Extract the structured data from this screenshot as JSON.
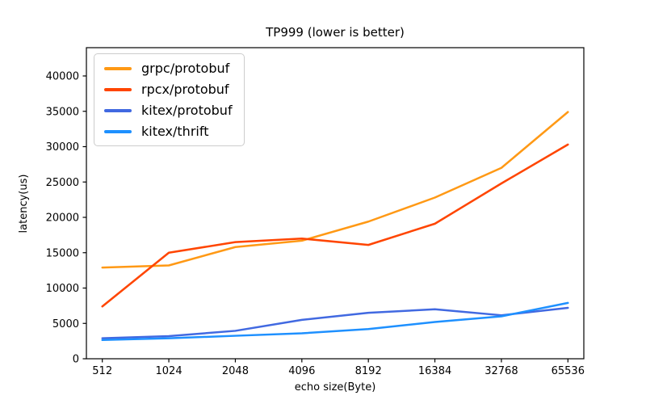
{
  "title": "TP999 (lower is better)",
  "chart_data": {
    "type": "line",
    "title": "TP999 (lower is better)",
    "xlabel": "echo size(Byte)",
    "ylabel": "latency(us)",
    "categories": [
      "512",
      "1024",
      "2048",
      "4096",
      "8192",
      "16384",
      "32768",
      "65536"
    ],
    "series": [
      {
        "name": "grpc/protobuf",
        "color": "#FF9915",
        "values": [
          12900,
          13200,
          15800,
          16700,
          19400,
          22800,
          27000,
          34900
        ]
      },
      {
        "name": "rpcx/protobuf",
        "color": "#FF4500",
        "values": [
          7400,
          15000,
          16500,
          17000,
          16100,
          19100,
          24800,
          30300
        ]
      },
      {
        "name": "kitex/protobuf",
        "color": "#4169E1",
        "values": [
          2900,
          3200,
          3950,
          5500,
          6500,
          7000,
          6150,
          7200
        ]
      },
      {
        "name": "kitex/thrift",
        "color": "#1E90FF",
        "values": [
          2650,
          2900,
          3250,
          3600,
          4200,
          5200,
          6000,
          7900
        ]
      }
    ],
    "yticks": [
      0,
      5000,
      10000,
      15000,
      20000,
      25000,
      30000,
      35000,
      40000
    ],
    "ylim": [
      0,
      44000
    ],
    "grid": false,
    "legend_position": "upper-left",
    "spine_color": "#000000",
    "background_color": "#ffffff",
    "line_width": 2.5
  }
}
